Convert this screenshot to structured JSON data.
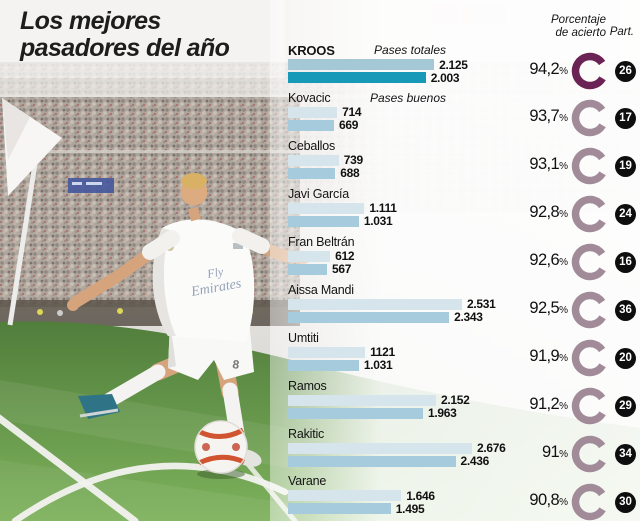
{
  "title": "Los mejores pasadores del año",
  "header": {
    "accuracy": "Porcentaje\nde acierto",
    "appearances": "Part."
  },
  "legend": {
    "total": "Pases totales",
    "good": "Pases buenos"
  },
  "percent_sign": "%",
  "photo": {
    "shirt_sponsor_line1": "Fly",
    "shirt_sponsor_line2": "Emirates",
    "shorts_number": "8"
  },
  "colors": {
    "bar_total": "#d6e4eb",
    "bar_good": "#a6cbdd",
    "bar_total_highlight": "#a5c8d6",
    "bar_good_highlight": "#1899b7",
    "donut": "#a28b98",
    "donut_highlight": "#6b2254",
    "badge_bg": "#0e0e0e",
    "badge_text": "#ffffff"
  },
  "chart_data": {
    "type": "bar",
    "title": "Los mejores pasadores del año",
    "series_labels": [
      "Pases totales",
      "Pases buenos"
    ],
    "x_max": 2676,
    "players": [
      {
        "name": "KROOS",
        "total": 2125,
        "total_label": "2.125",
        "good": 2003,
        "good_label": "2.003",
        "accuracy_pct": 94.2,
        "accuracy_label": "94,2",
        "appearances": 26,
        "highlight": true
      },
      {
        "name": "Kovacic",
        "total": 714,
        "total_label": "714",
        "good": 669,
        "good_label": "669",
        "accuracy_pct": 93.7,
        "accuracy_label": "93,7",
        "appearances": 17
      },
      {
        "name": "Ceballos",
        "total": 739,
        "total_label": "739",
        "good": 688,
        "good_label": "688",
        "accuracy_pct": 93.1,
        "accuracy_label": "93,1",
        "appearances": 19
      },
      {
        "name": "Javi García",
        "total": 1111,
        "total_label": "1.111",
        "good": 1031,
        "good_label": "1.031",
        "accuracy_pct": 92.8,
        "accuracy_label": "92,8",
        "appearances": 24
      },
      {
        "name": "Fran Beltrán",
        "total": 612,
        "total_label": "612",
        "good": 567,
        "good_label": "567",
        "accuracy_pct": 92.6,
        "accuracy_label": "92,6",
        "appearances": 16
      },
      {
        "name": "Aissa Mandi",
        "total": 2531,
        "total_label": "2.531",
        "good": 2343,
        "good_label": "2.343",
        "accuracy_pct": 92.5,
        "accuracy_label": "92,5",
        "appearances": 36
      },
      {
        "name": "Umtiti",
        "total": 1121,
        "total_label": "1121",
        "good": 1031,
        "good_label": "1.031",
        "accuracy_pct": 91.9,
        "accuracy_label": "91,9",
        "appearances": 20
      },
      {
        "name": "Ramos",
        "total": 2152,
        "total_label": "2.152",
        "good": 1963,
        "good_label": "1.963",
        "accuracy_pct": 91.2,
        "accuracy_label": "91,2",
        "appearances": 29
      },
      {
        "name": "Rakitic",
        "total": 2676,
        "total_label": "2.676",
        "good": 2436,
        "good_label": "2.436",
        "accuracy_pct": 91.0,
        "accuracy_label": "91",
        "appearances": 34
      },
      {
        "name": "Varane",
        "total": 1646,
        "total_label": "1.646",
        "good": 1495,
        "good_label": "1.495",
        "accuracy_pct": 90.8,
        "accuracy_label": "90,8",
        "appearances": 30
      }
    ]
  }
}
